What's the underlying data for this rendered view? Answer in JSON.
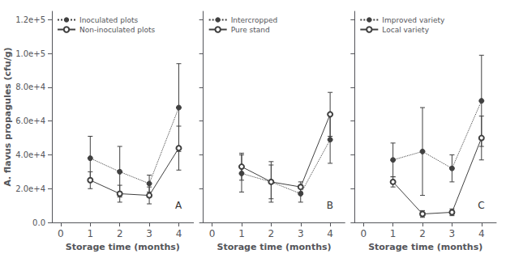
{
  "chart_data": [
    {
      "type": "line",
      "xlabel": "Storage time (months)",
      "ylabel": "A. flavus propagules (cfu/g)",
      "annotations": [
        "A"
      ],
      "x": [
        1,
        2,
        3,
        4
      ],
      "xlim": [
        -0.3,
        4.5
      ],
      "xticks": [
        0,
        1,
        2,
        3,
        4
      ],
      "ylim": [
        0,
        125000
      ],
      "yticks": [
        {
          "value": 0,
          "label": "0.0"
        },
        {
          "value": 20000,
          "label": "2.0e+4"
        },
        {
          "value": 40000,
          "label": "4.0e+4"
        },
        {
          "value": 60000,
          "label": "6.0e+4"
        },
        {
          "value": 80000,
          "label": "8.0e+4"
        },
        {
          "value": 100000,
          "label": "1.0e+5"
        },
        {
          "value": 120000,
          "label": "1.2e+5"
        }
      ],
      "grid": false,
      "legend": "upper left",
      "series": [
        {
          "name": "Inoculated plots",
          "color": "#404040",
          "marker": "filled circle",
          "line_style": "dotted",
          "values": [
            38000,
            30000,
            23000,
            68000
          ],
          "errors": [
            13000,
            15000,
            5000,
            26000
          ]
        },
        {
          "name": "Non-inoculated plots",
          "color": "#404040",
          "marker": "open circle",
          "line_style": "solid",
          "values": [
            25000,
            17000,
            16000,
            44000
          ],
          "errors": [
            5000,
            5000,
            5000,
            13000
          ]
        }
      ]
    },
    {
      "type": "line",
      "xlabel": "Storage time (months)",
      "annotations": [
        "B"
      ],
      "x": [
        1,
        2,
        3,
        4
      ],
      "xlim": [
        -0.3,
        4.5
      ],
      "xticks": [
        0,
        1,
        2,
        3,
        4
      ],
      "ylim": [
        0,
        125000
      ],
      "yticks": [
        0,
        20000,
        40000,
        60000,
        80000,
        100000,
        120000
      ],
      "tick_labels": "x",
      "grid": false,
      "legend": "upper left",
      "series": [
        {
          "name": "Intercropped",
          "color": "#404040",
          "marker": "filled circle",
          "line_style": "dotted",
          "values": [
            29000,
            24000,
            17000,
            49000
          ],
          "errors": [
            11000,
            10000,
            5000,
            14000
          ]
        },
        {
          "name": "Pure stand",
          "color": "#404040",
          "marker": "open circle",
          "line_style": "solid",
          "values": [
            33000,
            24000,
            21000,
            64000
          ],
          "errors": [
            8000,
            12000,
            3000,
            13000
          ]
        }
      ]
    },
    {
      "type": "line",
      "xlabel": "Storage time (months)",
      "annotations": [
        "C"
      ],
      "x": [
        1,
        2,
        3,
        4
      ],
      "xlim": [
        -0.3,
        4.5
      ],
      "xticks": [
        0,
        1,
        2,
        3,
        4
      ],
      "ylim": [
        0,
        125000
      ],
      "yticks": [
        0,
        20000,
        40000,
        60000,
        80000,
        100000,
        120000
      ],
      "tick_labels": "x",
      "grid": false,
      "legend": "upper left",
      "series": [
        {
          "name": "Improved variety",
          "color": "#404040",
          "marker": "filled circle",
          "line_style": "dotted",
          "values": [
            37000,
            42000,
            32000,
            72000
          ],
          "errors": [
            10000,
            26000,
            8000,
            27000
          ]
        },
        {
          "name": "Local variety",
          "color": "#404040",
          "marker": "open circle",
          "line_style": "solid",
          "values": [
            24000,
            5000,
            6000,
            50000
          ],
          "errors": [
            3000,
            2000,
            2000,
            13000
          ]
        }
      ]
    }
  ]
}
